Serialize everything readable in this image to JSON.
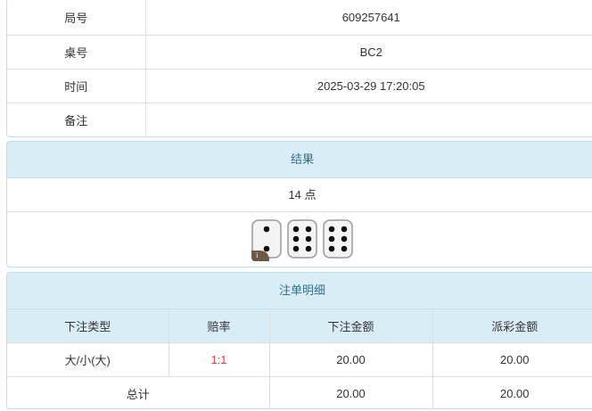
{
  "info": {
    "rows": [
      {
        "label": "局号",
        "value": "609257641"
      },
      {
        "label": "桌号",
        "value": "BC2"
      },
      {
        "label": "时间",
        "value": "2025-03-29 17:20:05"
      },
      {
        "label": "备注",
        "value": ""
      }
    ]
  },
  "result": {
    "title": "结果",
    "points": "14 点",
    "dice": [
      2,
      6,
      6
    ],
    "info_badge": "i"
  },
  "bets": {
    "title": "注单明细",
    "headers": [
      "下注类型",
      "赔率",
      "下注金额",
      "派彩金额"
    ],
    "rows": [
      {
        "type": "大/小(大)",
        "odds": "1:1",
        "amount": "20.00",
        "payout": "20.00"
      }
    ],
    "total": {
      "label": "总计",
      "amount": "20.00",
      "payout": "20.00"
    },
    "odds_color": "#e4393c"
  }
}
